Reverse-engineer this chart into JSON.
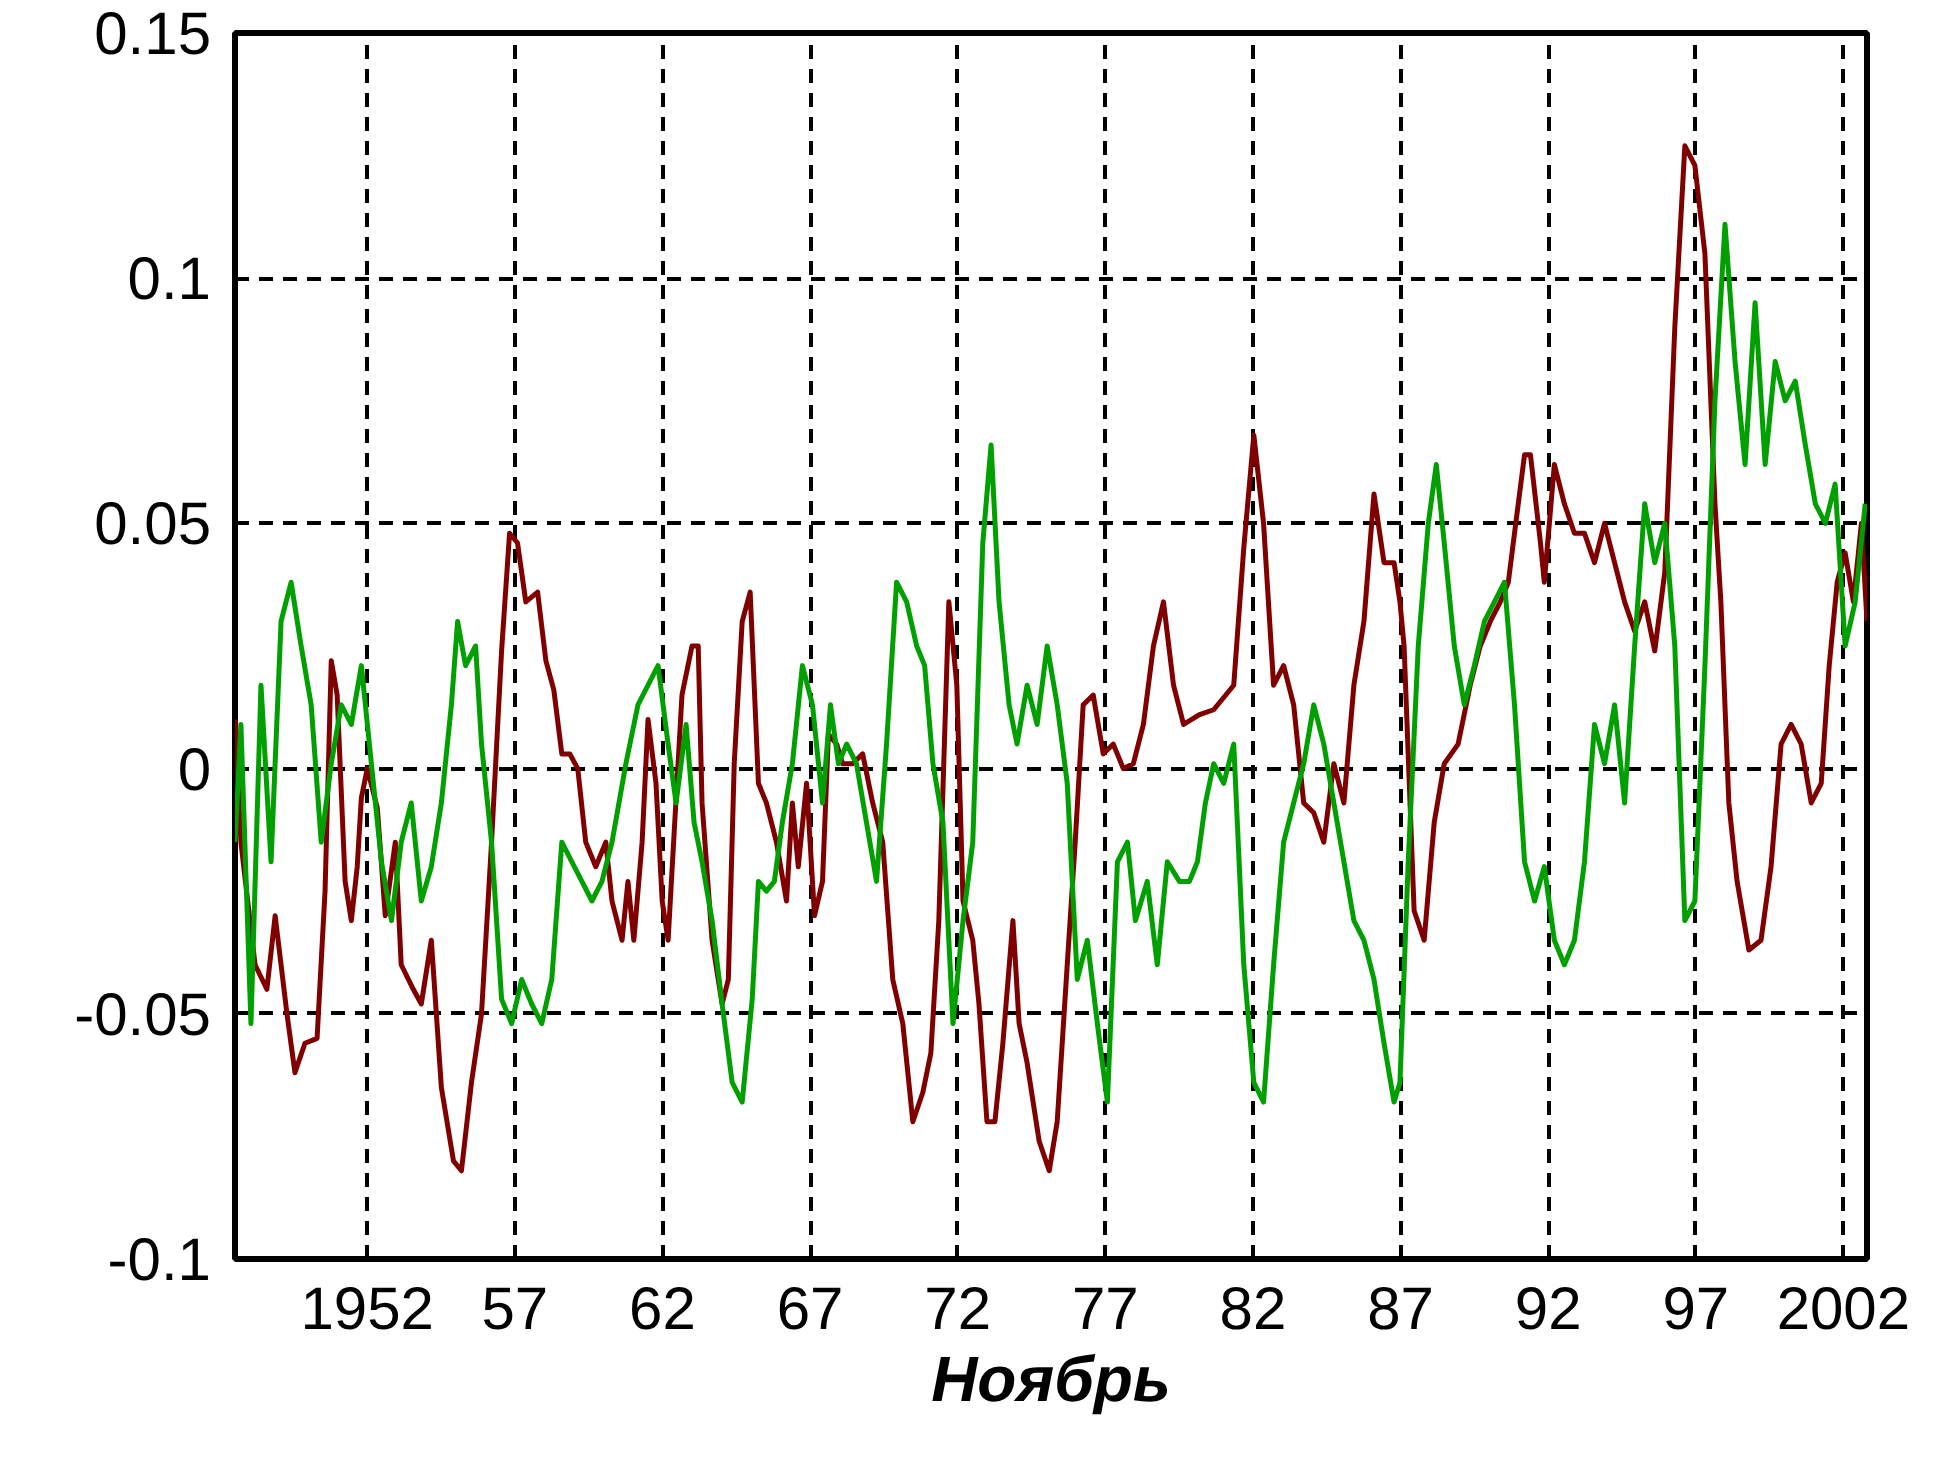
{
  "chart_data": {
    "type": "line",
    "xlabel": "Ноябрь",
    "xlim": [
      1947.52,
      2002.8
    ],
    "ylim": [
      -0.1,
      0.15
    ],
    "xticks": [
      {
        "value": 1952,
        "label": "1952"
      },
      {
        "value": 1957,
        "label": "57"
      },
      {
        "value": 1962,
        "label": "62"
      },
      {
        "value": 1967,
        "label": "67"
      },
      {
        "value": 1972,
        "label": "72"
      },
      {
        "value": 1977,
        "label": "77"
      },
      {
        "value": 1982,
        "label": "82"
      },
      {
        "value": 1987,
        "label": "87"
      },
      {
        "value": 1992,
        "label": "92"
      },
      {
        "value": 1997,
        "label": "97"
      },
      {
        "value": 2002,
        "label": "2002"
      }
    ],
    "yticks": [
      -0.1,
      -0.05,
      0,
      0.05,
      0.1,
      0.15
    ],
    "grid": true,
    "marker": "none",
    "line_style": "solid",
    "series": [
      {
        "color": "#800000",
        "x": [
          1947.52,
          1947.72,
          1948.2,
          1948.6,
          1948.88,
          1949.28,
          1949.55,
          1949.89,
          1950.3,
          1950.57,
          1950.78,
          1950.98,
          1951.25,
          1951.46,
          1951.66,
          1951.8,
          1952.0,
          1952.34,
          1952.61,
          1952.95,
          1953.15,
          1953.56,
          1953.83,
          1954.17,
          1954.51,
          1954.92,
          1955.19,
          1955.53,
          1955.87,
          1956.21,
          1956.55,
          1956.82,
          1957.09,
          1957.37,
          1957.77,
          1958.05,
          1958.32,
          1958.59,
          1958.86,
          1959.13,
          1959.4,
          1959.74,
          1960.08,
          1960.29,
          1960.63,
          1960.83,
          1961.03,
          1961.31,
          1961.51,
          1961.78,
          1961.99,
          1962.19,
          1962.33,
          1962.66,
          1963.0,
          1963.21,
          1963.34,
          1963.68,
          1964.02,
          1964.23,
          1964.43,
          1964.7,
          1964.97,
          1965.25,
          1965.52,
          1965.86,
          1966.2,
          1966.4,
          1966.6,
          1966.88,
          1967.15,
          1967.42,
          1967.62,
          1967.9,
          1968.1,
          1968.44,
          1968.78,
          1969.12,
          1969.46,
          1969.8,
          1970.14,
          1970.48,
          1970.82,
          1971.09,
          1971.36,
          1971.7,
          1971.97,
          1972.18,
          1972.51,
          1972.72,
          1972.99,
          1973.26,
          1973.53,
          1973.87,
          1974.08,
          1974.35,
          1974.76,
          1975.1,
          1975.37,
          1975.71,
          1975.98,
          1976.25,
          1976.59,
          1976.93,
          1977.27,
          1977.61,
          1977.95,
          1978.29,
          1978.63,
          1978.97,
          1979.31,
          1979.65,
          1980.19,
          1980.67,
          1981.35,
          1981.69,
          1982.03,
          1982.36,
          1982.7,
          1983.04,
          1983.38,
          1983.72,
          1984.06,
          1984.4,
          1984.74,
          1985.08,
          1985.42,
          1985.76,
          1986.1,
          1986.44,
          1986.78,
          1986.98,
          1987.12,
          1987.46,
          1987.8,
          1988.14,
          1988.48,
          1988.95,
          1989.36,
          1989.7,
          1990.04,
          1990.38,
          1990.65,
          1990.86,
          1991.2,
          1991.4,
          1991.74,
          1991.87,
          1992.21,
          1992.55,
          1992.89,
          1993.23,
          1993.57,
          1993.91,
          1994.25,
          1994.59,
          1994.93,
          1995.27,
          1995.61,
          1995.95,
          1996.29,
          1996.63,
          1996.97,
          1997.31,
          1997.65,
          1997.85,
          1998.12,
          1998.4,
          1998.8,
          1999.21,
          1999.55,
          1999.89,
          2000.23,
          2000.57,
          2000.91,
          2001.25,
          2001.52,
          2001.79,
          2002.06,
          2002.34,
          2002.61,
          2002.8
        ],
        "values": [
          0.01,
          -0.015,
          -0.04,
          -0.045,
          -0.03,
          -0.05,
          -0.062,
          -0.056,
          -0.055,
          -0.025,
          0.022,
          0.015,
          -0.023,
          -0.031,
          -0.02,
          -0.006,
          0,
          -0.008,
          -0.03,
          -0.015,
          -0.04,
          -0.045,
          -0.048,
          -0.035,
          -0.065,
          -0.08,
          -0.082,
          -0.064,
          -0.05,
          -0.015,
          0.024,
          0.048,
          0.046,
          0.034,
          0.036,
          0.022,
          0.016,
          0.003,
          0.003,
          0,
          -0.015,
          -0.02,
          -0.015,
          -0.027,
          -0.035,
          -0.023,
          -0.035,
          -0.015,
          0.01,
          -0.003,
          -0.027,
          -0.035,
          -0.02,
          0.015,
          0.025,
          0.025,
          -0.007,
          -0.035,
          -0.048,
          -0.043,
          0.001,
          0.03,
          0.036,
          -0.003,
          -0.007,
          -0.015,
          -0.027,
          -0.007,
          -0.02,
          -0.003,
          -0.03,
          -0.023,
          0.007,
          0.005,
          0.001,
          0.001,
          0.003,
          -0.007,
          -0.015,
          -0.043,
          -0.052,
          -0.072,
          -0.066,
          -0.058,
          -0.031,
          0.034,
          0.017,
          -0.027,
          -0.035,
          -0.048,
          -0.072,
          -0.072,
          -0.056,
          -0.031,
          -0.052,
          -0.06,
          -0.076,
          -0.082,
          -0.072,
          -0.04,
          -0.015,
          0.013,
          0.015,
          0.003,
          0.005,
          0,
          0.001,
          0.009,
          0.025,
          0.034,
          0.017,
          0.009,
          0.011,
          0.012,
          0.017,
          0.045,
          0.068,
          0.05,
          0.017,
          0.021,
          0.013,
          -0.007,
          -0.009,
          -0.015,
          0.001,
          -0.007,
          0.017,
          0.03,
          0.056,
          0.042,
          0.042,
          0.034,
          0.025,
          -0.029,
          -0.035,
          -0.011,
          0.001,
          0.005,
          0.017,
          0.025,
          0.03,
          0.034,
          0.038,
          0.048,
          0.064,
          0.064,
          0.046,
          0.038,
          0.062,
          0.054,
          0.048,
          0.048,
          0.042,
          0.05,
          0.042,
          0.034,
          0.028,
          0.034,
          0.024,
          0.04,
          0.09,
          0.127,
          0.123,
          0.105,
          0.054,
          0.034,
          -0.007,
          -0.023,
          -0.037,
          -0.035,
          -0.02,
          0.005,
          0.009,
          0.005,
          -0.007,
          -0.003,
          0.021,
          0.038,
          0.044,
          0.034,
          0.05,
          0.03
        ]
      },
      {
        "color": "#00a000",
        "x": [
          1947.52,
          1947.72,
          1948.06,
          1948.4,
          1948.74,
          1949.08,
          1949.42,
          1949.76,
          1950.1,
          1950.44,
          1950.78,
          1951.12,
          1951.46,
          1951.8,
          1952.14,
          1952.48,
          1952.82,
          1953.15,
          1953.49,
          1953.83,
          1954.17,
          1954.51,
          1954.85,
          1955.06,
          1955.33,
          1955.67,
          1955.87,
          1956.21,
          1956.55,
          1956.89,
          1957.23,
          1957.57,
          1957.91,
          1958.25,
          1958.59,
          1958.93,
          1959.27,
          1959.61,
          1959.95,
          1960.29,
          1960.76,
          1961.17,
          1961.51,
          1961.85,
          1962.19,
          1962.46,
          1962.8,
          1963.07,
          1963.34,
          1963.68,
          1964.02,
          1964.36,
          1964.7,
          1965.04,
          1965.25,
          1965.52,
          1965.79,
          1966.06,
          1966.4,
          1966.74,
          1967.08,
          1967.42,
          1967.69,
          1967.96,
          1968.24,
          1968.57,
          1968.91,
          1969.25,
          1969.59,
          1969.93,
          1970.27,
          1970.61,
          1970.88,
          1971.16,
          1971.5,
          1971.84,
          1972.18,
          1972.51,
          1972.85,
          1973.13,
          1973.4,
          1973.74,
          1974.01,
          1974.35,
          1974.69,
          1975.03,
          1975.37,
          1975.71,
          1976.05,
          1976.39,
          1976.73,
          1977.07,
          1977.41,
          1977.75,
          1978.02,
          1978.42,
          1978.76,
          1979.1,
          1979.51,
          1979.85,
          1980.12,
          1980.39,
          1980.67,
          1981.01,
          1981.35,
          1981.69,
          1982.03,
          1982.36,
          1982.7,
          1983.04,
          1983.38,
          1983.72,
          1984.06,
          1984.4,
          1984.74,
          1985.08,
          1985.42,
          1985.76,
          1986.1,
          1986.44,
          1986.78,
          1986.98,
          1987.26,
          1987.6,
          1987.94,
          1988.21,
          1988.48,
          1988.82,
          1989.16,
          1989.5,
          1989.84,
          1990.18,
          1990.52,
          1990.86,
          1991.2,
          1991.54,
          1991.87,
          1992.21,
          1992.55,
          1992.89,
          1993.23,
          1993.57,
          1993.91,
          1994.25,
          1994.59,
          1994.93,
          1995.27,
          1995.61,
          1995.95,
          1996.29,
          1996.63,
          1996.97,
          1997.31,
          1997.65,
          1997.99,
          1998.33,
          1998.67,
          1999.01,
          1999.35,
          1999.69,
          2000.03,
          2000.37,
          2000.71,
          2001.05,
          2001.39,
          2001.72,
          2002.06,
          2002.4,
          2002.74
        ],
        "values": [
          -0.015,
          0.009,
          -0.052,
          0.017,
          -0.019,
          0.03,
          0.038,
          0.025,
          0.013,
          -0.015,
          0.001,
          0.013,
          0.009,
          0.021,
          0.001,
          -0.019,
          -0.031,
          -0.015,
          -0.007,
          -0.027,
          -0.02,
          -0.007,
          0.013,
          0.03,
          0.021,
          0.025,
          0.005,
          -0.015,
          -0.047,
          -0.052,
          -0.043,
          -0.048,
          -0.052,
          -0.043,
          -0.015,
          -0.019,
          -0.023,
          -0.027,
          -0.023,
          -0.015,
          0.001,
          0.013,
          0.017,
          0.021,
          0.005,
          -0.007,
          0.009,
          -0.011,
          -0.019,
          -0.031,
          -0.048,
          -0.064,
          -0.068,
          -0.047,
          -0.023,
          -0.025,
          -0.023,
          -0.011,
          0.001,
          0.021,
          0.013,
          -0.007,
          0.013,
          0.001,
          0.005,
          0.001,
          -0.011,
          -0.023,
          0.005,
          0.038,
          0.034,
          0.025,
          0.021,
          0.001,
          -0.011,
          -0.052,
          -0.031,
          -0.015,
          0.046,
          0.066,
          0.034,
          0.013,
          0.005,
          0.017,
          0.009,
          0.025,
          0.013,
          -0.003,
          -0.043,
          -0.035,
          -0.052,
          -0.068,
          -0.019,
          -0.015,
          -0.031,
          -0.023,
          -0.04,
          -0.019,
          -0.023,
          -0.023,
          -0.019,
          -0.007,
          0.001,
          -0.003,
          0.005,
          -0.04,
          -0.064,
          -0.068,
          -0.04,
          -0.015,
          -0.007,
          0.001,
          0.013,
          0.005,
          -0.007,
          -0.019,
          -0.031,
          -0.035,
          -0.043,
          -0.056,
          -0.068,
          -0.064,
          -0.019,
          0.025,
          0.05,
          0.062,
          0.046,
          0.025,
          0.013,
          0.021,
          0.03,
          0.034,
          0.038,
          0.013,
          -0.019,
          -0.027,
          -0.02,
          -0.035,
          -0.04,
          -0.035,
          -0.019,
          0.009,
          0.001,
          0.013,
          -0.007,
          0.025,
          0.054,
          0.042,
          0.05,
          0.025,
          -0.031,
          -0.027,
          0.021,
          0.075,
          0.111,
          0.083,
          0.062,
          0.095,
          0.062,
          0.083,
          0.075,
          0.079,
          0.066,
          0.054,
          0.05,
          0.058,
          0.025,
          0.034,
          0.054
        ]
      }
    ]
  }
}
